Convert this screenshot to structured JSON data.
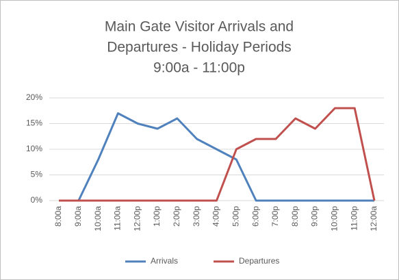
{
  "chart_data": {
    "type": "line",
    "title": [
      "Main Gate Visitor Arrivals and",
      "Departures - Holiday Periods",
      "9:00a - 11:00p"
    ],
    "categories": [
      "8:00a",
      "9:00a",
      "10:00a",
      "11:00a",
      "12:00p",
      "1:00p",
      "2:00p",
      "3:00p",
      "4:00p",
      "5:00p",
      "6:00p",
      "7:00p",
      "8:00p",
      "9:00p",
      "10:00p",
      "11:00p",
      "12:00a"
    ],
    "series": [
      {
        "name": "Arrivals",
        "color": "#4f81bd",
        "values": [
          0,
          0,
          8,
          17,
          15,
          14,
          16,
          12,
          10,
          8,
          0,
          0,
          0,
          0,
          0,
          0,
          0
        ]
      },
      {
        "name": "Departures",
        "color": "#c0504d",
        "values": [
          0,
          0,
          0,
          0,
          0,
          0,
          0,
          0,
          0,
          10,
          12,
          12,
          16,
          14,
          18,
          18,
          0
        ]
      }
    ],
    "ylim": [
      0,
      20
    ],
    "yticks": [
      {
        "value": 0,
        "label": "0%"
      },
      {
        "value": 5,
        "label": "5%"
      },
      {
        "value": 10,
        "label": "10%"
      },
      {
        "value": 15,
        "label": "15%"
      },
      {
        "value": 20,
        "label": "20%"
      }
    ],
    "grid": true,
    "legend": "bottom"
  }
}
